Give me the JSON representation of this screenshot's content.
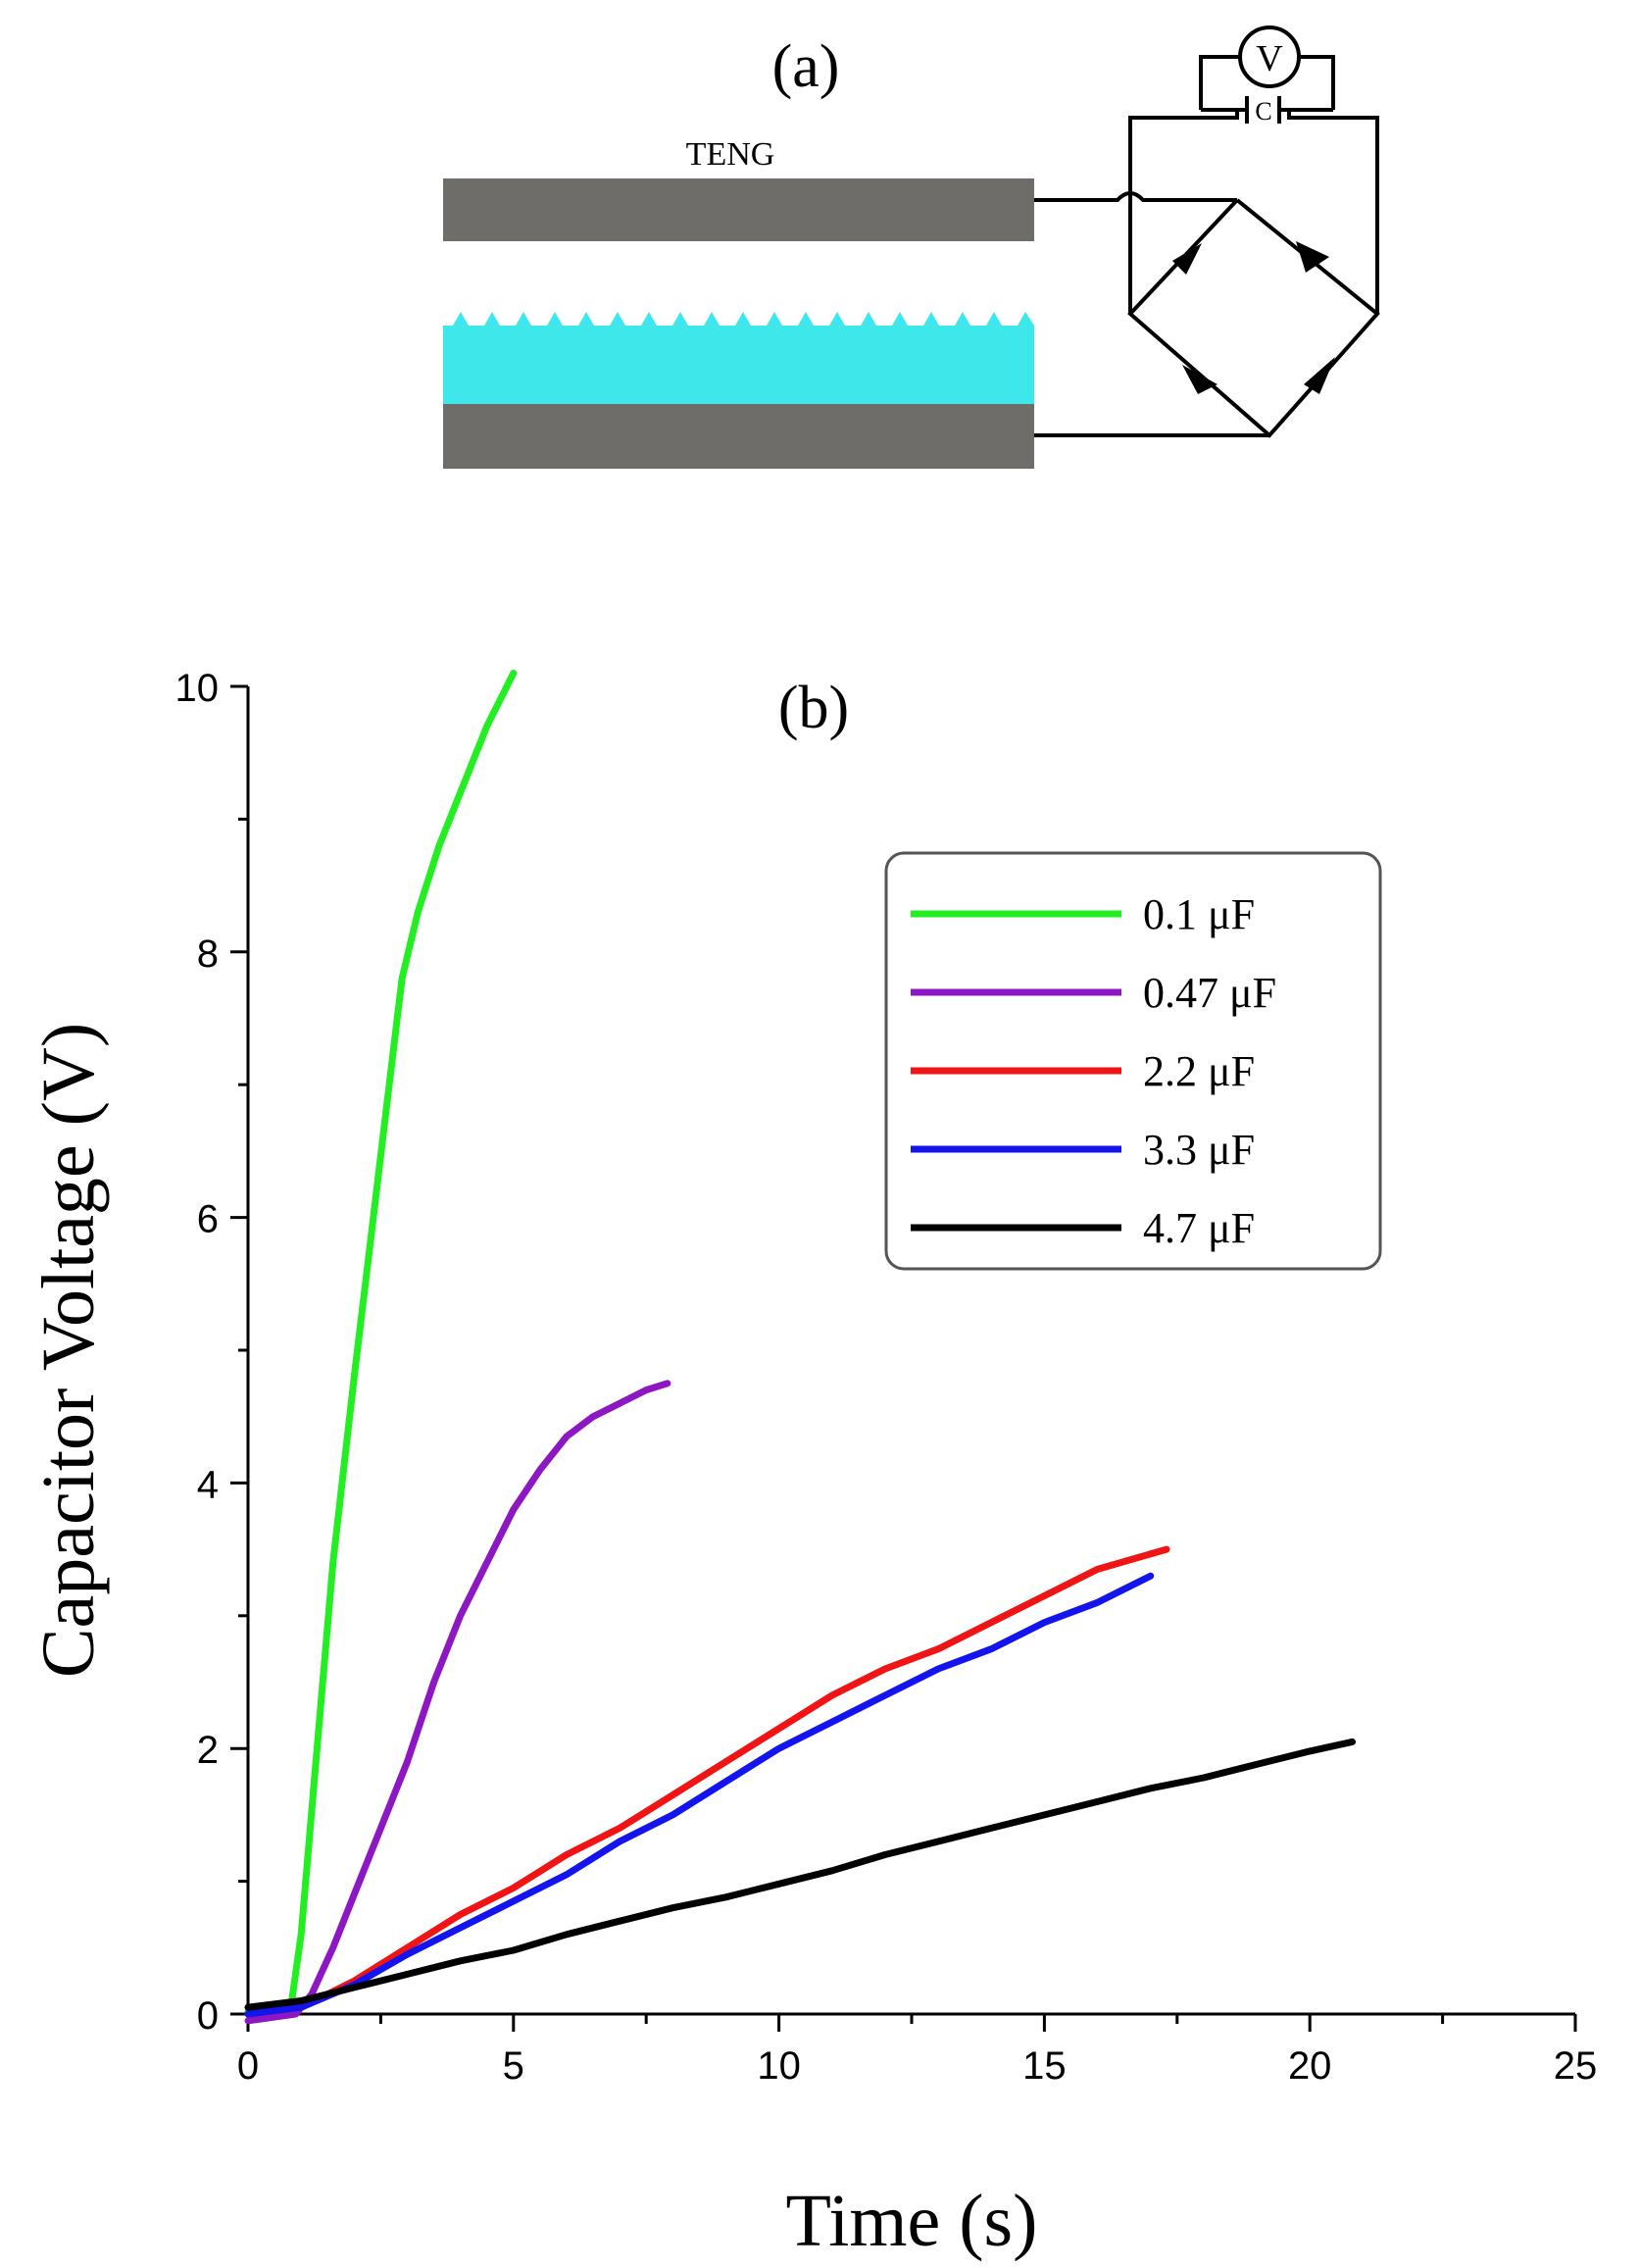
{
  "panel_a": {
    "label": "(a)",
    "teng_label": "TENG",
    "voltmeter_label": "V",
    "capacitor_label": "C",
    "colors": {
      "electrode": "#6e6d6a",
      "dielectric": "#3ee8ea",
      "wire": "#000000"
    }
  },
  "chart_data": {
    "type": "line",
    "panel_label": "(b)",
    "title": "",
    "xlabel": "Time (s)",
    "ylabel": "Capacitor Voltage (V)",
    "xlim": [
      0,
      25
    ],
    "ylim": [
      0,
      10
    ],
    "xticks": [
      0,
      5,
      10,
      15,
      20,
      25
    ],
    "yticks": [
      0,
      2,
      4,
      6,
      8,
      10
    ],
    "x_minor_step": 2.5,
    "y_minor_step": 1,
    "grid": false,
    "legend_position": "upper-right",
    "series": [
      {
        "name": "0.1 μF",
        "color": "#22ee22",
        "x": [
          0,
          0.8,
          1.0,
          1.3,
          1.6,
          2.0,
          2.3,
          2.6,
          2.9,
          3.2,
          3.6,
          4.0,
          4.5,
          5.0
        ],
        "y": [
          0.02,
          0.03,
          0.6,
          2.0,
          3.4,
          4.8,
          5.8,
          6.8,
          7.8,
          8.3,
          8.8,
          9.2,
          9.7,
          10.1
        ]
      },
      {
        "name": "0.47 μF",
        "color": "#8e17c4",
        "x": [
          0,
          0.9,
          1.2,
          1.6,
          2.0,
          2.5,
          3.0,
          3.5,
          4.0,
          4.5,
          5.0,
          5.5,
          6.0,
          6.5,
          7.0,
          7.5,
          7.9
        ],
        "y": [
          -0.05,
          0.0,
          0.15,
          0.5,
          0.9,
          1.4,
          1.9,
          2.5,
          3.0,
          3.4,
          3.8,
          4.1,
          4.35,
          4.5,
          4.6,
          4.7,
          4.75
        ]
      },
      {
        "name": "2.2 μF",
        "color": "#f01414",
        "x": [
          0,
          1.0,
          2.0,
          3.0,
          4.0,
          5.0,
          6.0,
          7.0,
          8.0,
          9.0,
          10.0,
          11.0,
          12.0,
          13.0,
          14.0,
          15.0,
          16.0,
          17.3
        ],
        "y": [
          0.0,
          0.05,
          0.25,
          0.5,
          0.75,
          0.95,
          1.2,
          1.4,
          1.65,
          1.9,
          2.15,
          2.4,
          2.6,
          2.75,
          2.95,
          3.15,
          3.35,
          3.5
        ]
      },
      {
        "name": "3.3 μF",
        "color": "#1414ee",
        "x": [
          0,
          1.0,
          2.0,
          3.0,
          4.0,
          5.0,
          6.0,
          7.0,
          8.0,
          9.0,
          10.0,
          11.0,
          12.0,
          13.0,
          14.0,
          15.0,
          16.0,
          17.0
        ],
        "y": [
          0.0,
          0.05,
          0.22,
          0.45,
          0.65,
          0.85,
          1.05,
          1.3,
          1.5,
          1.75,
          2.0,
          2.2,
          2.4,
          2.6,
          2.75,
          2.95,
          3.1,
          3.3
        ]
      },
      {
        "name": "4.7 μF",
        "color": "#000000",
        "x": [
          0,
          1.0,
          2.0,
          3.0,
          4.0,
          5.0,
          6.0,
          7.0,
          8.0,
          9.0,
          10.0,
          11.0,
          12.0,
          13.0,
          14.0,
          15.0,
          16.0,
          17.0,
          18.0,
          19.0,
          20.0,
          20.8
        ],
        "y": [
          0.05,
          0.1,
          0.2,
          0.3,
          0.4,
          0.48,
          0.6,
          0.7,
          0.8,
          0.88,
          0.98,
          1.08,
          1.2,
          1.3,
          1.4,
          1.5,
          1.6,
          1.7,
          1.78,
          1.88,
          1.98,
          2.05
        ]
      }
    ]
  }
}
